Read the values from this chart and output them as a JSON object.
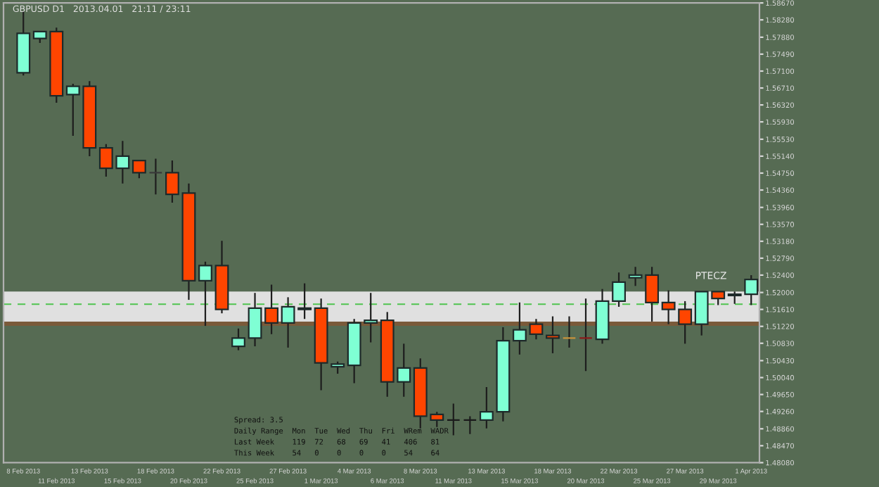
{
  "chart_data": {
    "type": "candlestick",
    "title": "GBPUSD D1   2013.04.01   21:11 / 23:11",
    "categories": [
      "8 Feb 2013",
      null,
      "11 Feb 2013",
      null,
      "13 Feb 2013",
      null,
      "15 Feb 2013",
      null,
      "18 Feb 2013",
      null,
      "20 Feb 2013",
      null,
      "22 Feb 2013",
      null,
      "25 Feb 2013",
      null,
      "27 Feb 2013",
      null,
      "1 Mar 2013",
      null,
      "4 Mar 2013",
      null,
      "6 Mar 2013",
      null,
      "8 Mar 2013",
      null,
      "11 Mar 2013",
      null,
      "13 Mar 2013",
      null,
      "15 Mar 2013",
      null,
      "18 Mar 2013",
      null,
      "20 Mar 2013",
      null,
      "22 Mar 2013",
      null,
      "25 Mar 2013",
      null,
      "27 Mar 2013",
      null,
      "29 Mar 2013",
      null,
      "1 Apr 2013"
    ],
    "ohlc": [
      [
        1.5706,
        1.5848,
        1.57,
        1.5797
      ],
      [
        1.5785,
        1.5801,
        1.5775,
        1.5801
      ],
      [
        1.5801,
        1.581,
        1.5637,
        1.5653
      ],
      [
        1.5656,
        1.5681,
        1.5561,
        1.5675
      ],
      [
        1.5675,
        1.5687,
        1.5514,
        1.5533
      ],
      [
        1.5533,
        1.5542,
        1.5467,
        1.5486
      ],
      [
        1.5486,
        1.5549,
        1.5451,
        1.5514
      ],
      [
        1.5504,
        1.5504,
        1.5463,
        1.5476
      ],
      [
        1.5476,
        1.5508,
        1.5426,
        1.5476
      ],
      [
        1.5476,
        1.5504,
        1.5407,
        1.5426
      ],
      [
        1.5429,
        1.5451,
        1.5183,
        1.5227
      ],
      [
        1.5227,
        1.5271,
        1.5123,
        1.5262
      ],
      [
        1.5262,
        1.5319,
        1.5152,
        1.5161
      ],
      [
        1.5076,
        1.5117,
        1.5067,
        1.5095
      ],
      [
        1.5095,
        1.5199,
        1.5076,
        1.5164
      ],
      [
        1.5164,
        1.5218,
        1.5104,
        1.513
      ],
      [
        1.513,
        1.5189,
        1.5073,
        1.5167
      ],
      [
        1.5164,
        1.5221,
        1.5139,
        1.5161
      ],
      [
        1.5164,
        1.5186,
        1.4975,
        1.5038
      ],
      [
        1.5029,
        1.5041,
        1.5013,
        1.5035
      ],
      [
        1.5032,
        1.5139,
        1.4991,
        1.513
      ],
      [
        1.513,
        1.5199,
        1.5085,
        1.5136
      ],
      [
        1.5136,
        1.5155,
        1.496,
        1.4994
      ],
      [
        1.4994,
        1.5082,
        1.496,
        1.5026
      ],
      [
        1.5026,
        1.5048,
        1.4887,
        1.4915
      ],
      [
        1.4919,
        1.4925,
        1.489,
        1.4906
      ],
      [
        1.4906,
        1.4944,
        1.4871,
        1.4906
      ],
      [
        1.4906,
        1.4915,
        1.4874,
        1.4906
      ],
      [
        1.4906,
        1.4982,
        1.4887,
        1.4925
      ],
      [
        1.4925,
        1.512,
        1.4903,
        1.5089
      ],
      [
        1.5089,
        1.5177,
        1.5057,
        1.5114
      ],
      [
        1.5127,
        1.5139,
        1.5092,
        1.5104
      ],
      [
        1.5101,
        1.5145,
        1.506,
        1.5095
      ],
      [
        1.5095,
        1.5145,
        1.5073,
        1.5095
      ],
      [
        1.5095,
        1.5186,
        1.5019,
        1.5095
      ],
      [
        1.5092,
        1.5208,
        1.5082,
        1.518
      ],
      [
        1.518,
        1.5246,
        1.5167,
        1.5224
      ],
      [
        1.5234,
        1.5259,
        1.5215,
        1.524
      ],
      [
        1.524,
        1.5259,
        1.5133,
        1.5177
      ],
      [
        1.5177,
        1.5205,
        1.5127,
        1.5161
      ],
      [
        1.5161,
        1.518,
        1.5082,
        1.5127
      ],
      [
        1.5127,
        1.5202,
        1.5101,
        1.5202
      ],
      [
        1.5202,
        1.5202,
        1.5171,
        1.5186
      ],
      [
        1.5193,
        1.5202,
        1.5174,
        1.5196
      ],
      [
        1.5196,
        1.524,
        1.5171,
        1.523
      ]
    ],
    "colors": [
      "#7fffd4",
      "#7fffd4",
      "#ff4500",
      "#7fffd4",
      "#ff4500",
      "#ff4500",
      "#7fffd4",
      "#ff4500",
      "#3a3a3a",
      "#ff4500",
      "#ff4500",
      "#7fffd4",
      "#ff4500",
      "#7fffd4",
      "#7fffd4",
      "#ff4500",
      "#7fffd4",
      "#ff4500",
      "#ff4500",
      "#7fffd4",
      "#7fffd4",
      "#7fffd4",
      "#ff4500",
      "#7fffd4",
      "#ff4500",
      "#ff4500",
      "#1a1a1a",
      "#1a1a1a",
      "#7fffd4",
      "#7fffd4",
      "#7fffd4",
      "#ff4500",
      "#ff4500",
      "#c8923c",
      "#8b1a1a",
      "#7fffd4",
      "#7fffd4",
      "#7fffd4",
      "#ff4500",
      "#ff4500",
      "#ff4500",
      "#7fffd4",
      "#ff4500",
      "#7fffd4",
      "#7fffd4"
    ],
    "ylim": [
      1.4808,
      1.5867
    ],
    "yticks": [
      {
        "value": 1.5867,
        "label": "1.58670"
      },
      {
        "value": 1.5828,
        "label": "1.58280"
      },
      {
        "value": 1.5788,
        "label": "1.57880"
      },
      {
        "value": 1.5749,
        "label": "1.57490"
      },
      {
        "value": 1.571,
        "label": "1.57100"
      },
      {
        "value": 1.5671,
        "label": "1.56710"
      },
      {
        "value": 1.5632,
        "label": "1.56320"
      },
      {
        "value": 1.5593,
        "label": "1.55930"
      },
      {
        "value": 1.5553,
        "label": "1.55530"
      },
      {
        "value": 1.5514,
        "label": "1.55140"
      },
      {
        "value": 1.5475,
        "label": "1.54750"
      },
      {
        "value": 1.5436,
        "label": "1.54360"
      },
      {
        "value": 1.5396,
        "label": "1.53960"
      },
      {
        "value": 1.5357,
        "label": "1.53570"
      },
      {
        "value": 1.5318,
        "label": "1.53180"
      },
      {
        "value": 1.5279,
        "label": "1.52790"
      },
      {
        "value": 1.524,
        "label": "1.52400"
      },
      {
        "value": 1.52,
        "label": "1.52000"
      },
      {
        "value": 1.5161,
        "label": "1.51610"
      },
      {
        "value": 1.5122,
        "label": "1.51220"
      },
      {
        "value": 1.5083,
        "label": "1.50830"
      },
      {
        "value": 1.5043,
        "label": "1.50430"
      },
      {
        "value": 1.5004,
        "label": "1.50040"
      },
      {
        "value": 1.4965,
        "label": "1.49650"
      },
      {
        "value": 1.4926,
        "label": "1.49260"
      },
      {
        "value": 1.4886,
        "label": "1.48860"
      },
      {
        "value": 1.4847,
        "label": "1.48470"
      },
      {
        "value": 1.4808,
        "label": "1.48080"
      }
    ],
    "bands": [
      {
        "axis": "y",
        "from": 1.5133,
        "to": 1.5202,
        "color": "#e0e0e0"
      },
      {
        "axis": "y",
        "from": 1.5123,
        "to": 1.5133,
        "color": "#7a5a3a"
      }
    ],
    "ref_lines": [
      {
        "axis": "y",
        "value": 1.5173,
        "color": "#4fc34f",
        "line_style": "dashed"
      }
    ],
    "annotations": [
      "PTECZ",
      "Spread: 3.5",
      "Daily Range  Mon  Tue  Wed  Thu  Fri  WRem  WADR",
      "Last Week    119  72   68   69   41   406   81",
      "This Week    54   0    0    0    0    54    64"
    ],
    "grid": false
  }
}
